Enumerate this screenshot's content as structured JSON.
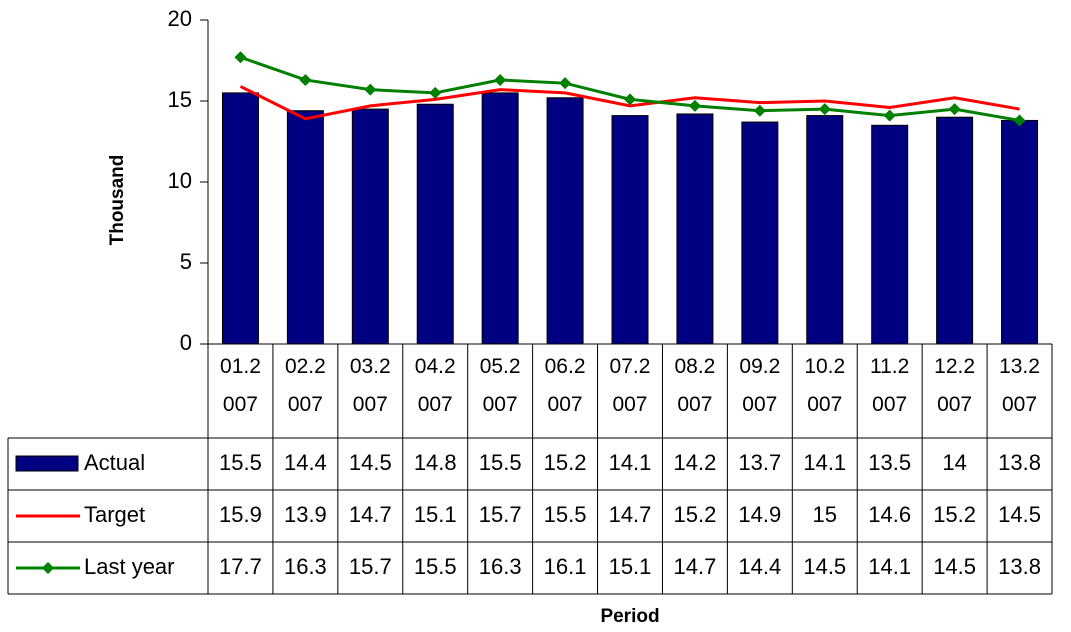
{
  "chart_data": {
    "type": "bar_line_table",
    "y_label": "Thousand",
    "x_label": "Period",
    "categories": [
      "01.2007",
      "02.2007",
      "03.2007",
      "04.2007",
      "05.2007",
      "06.2007",
      "07.2007",
      "08.2007",
      "09.2007",
      "10.2007",
      "11.2007",
      "12.2007",
      "13.2007"
    ],
    "ylim": [
      0,
      20
    ],
    "yticks": [
      0,
      5,
      10,
      15,
      20
    ],
    "series": [
      {
        "name": "Actual",
        "type": "bar",
        "color": "#000080",
        "values": [
          15.5,
          14.4,
          14.5,
          14.8,
          15.5,
          15.2,
          14.1,
          14.2,
          13.7,
          14.1,
          13.5,
          14,
          13.8
        ]
      },
      {
        "name": "Target",
        "type": "line",
        "color": "#ff0000",
        "values": [
          15.9,
          13.9,
          14.7,
          15.1,
          15.7,
          15.5,
          14.7,
          15.2,
          14.9,
          15,
          14.6,
          15.2,
          14.5
        ]
      },
      {
        "name": "Last year",
        "type": "line-marker",
        "color": "#008000",
        "values": [
          17.7,
          16.3,
          15.7,
          15.5,
          16.3,
          16.1,
          15.1,
          14.7,
          14.4,
          14.5,
          14.1,
          14.5,
          13.8
        ]
      }
    ]
  }
}
